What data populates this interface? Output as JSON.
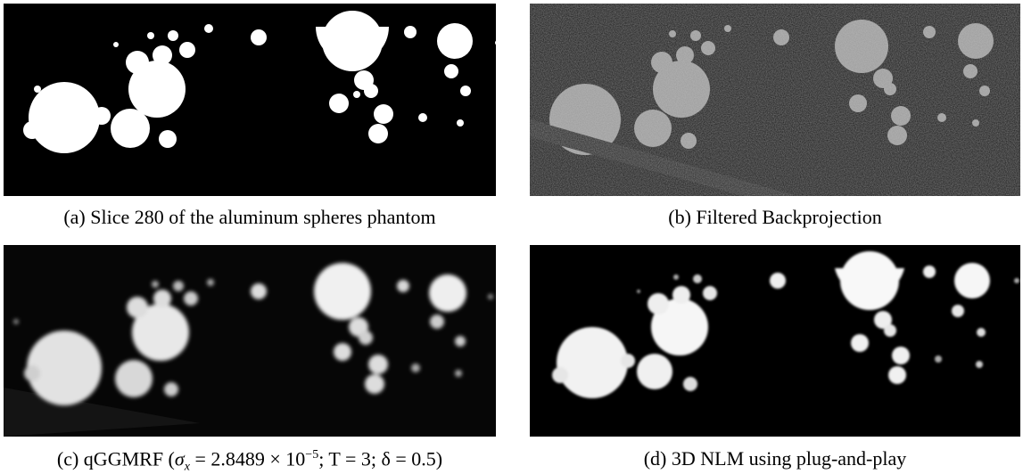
{
  "figure": {
    "panels": [
      {
        "id": "a",
        "caption": "(a) Slice 280 of the aluminum spheres phantom"
      },
      {
        "id": "b",
        "caption": "(b) Filtered Backprojection"
      },
      {
        "id": "c",
        "caption_prefix": "(c) qGGMRF (",
        "caption_sigma": "σ",
        "caption_sigma_sub": "x",
        "caption_value": " = 2.8489 × 10",
        "caption_exp": "−5",
        "caption_T": "; T = 3; ",
        "caption_delta": "δ = 0.5)"
      },
      {
        "id": "d",
        "caption": "(d) 3D NLM using plug-and-play"
      }
    ]
  }
}
